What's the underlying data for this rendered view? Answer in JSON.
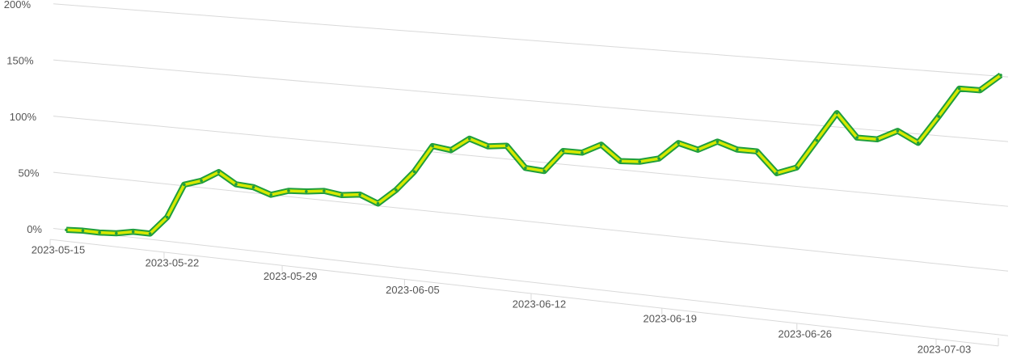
{
  "chart_data": {
    "type": "line",
    "x": [
      "2023-05-15",
      "2023-05-16",
      "2023-05-17",
      "2023-05-18",
      "2023-05-19",
      "2023-05-20",
      "2023-05-21",
      "2023-05-22",
      "2023-05-23",
      "2023-05-24",
      "2023-05-25",
      "2023-05-26",
      "2023-05-27",
      "2023-05-28",
      "2023-05-29",
      "2023-05-30",
      "2023-05-31",
      "2023-06-01",
      "2023-06-02",
      "2023-06-03",
      "2023-06-04",
      "2023-06-05",
      "2023-06-06",
      "2023-06-07",
      "2023-06-08",
      "2023-06-09",
      "2023-06-10",
      "2023-06-11",
      "2023-06-12",
      "2023-06-13",
      "2023-06-14",
      "2023-06-15",
      "2023-06-16",
      "2023-06-17",
      "2023-06-18",
      "2023-06-19",
      "2023-06-20",
      "2023-06-21",
      "2023-06-22",
      "2023-06-23",
      "2023-06-24",
      "2023-06-25",
      "2023-06-26",
      "2023-06-27",
      "2023-06-28",
      "2023-06-29",
      "2023-06-30",
      "2023-07-01",
      "2023-07-02",
      "2023-07-03",
      "2023-07-04"
    ],
    "series": [
      {
        "color": "#d6e800",
        "edge_color": "#1f9e3c",
        "values": [
          0,
          1,
          1,
          2,
          5,
          5,
          21,
          51,
          56,
          65,
          56,
          55,
          50,
          55,
          56,
          58,
          56,
          58,
          52,
          65,
          82,
          105,
          103,
          114,
          109,
          111,
          94,
          93,
          111,
          111,
          119,
          107,
          108,
          112,
          126,
          122,
          130,
          125,
          125,
          109,
          115,
          138,
          161,
          143,
          143,
          151,
          143,
          165,
          188,
          188,
          201
        ]
      }
    ],
    "xticks": [
      "2023-05-15",
      "2023-05-22",
      "2023-05-29",
      "2023-06-05",
      "2023-06-12",
      "2023-06-19",
      "2023-06-26",
      "2023-07-03"
    ],
    "ylim": [
      0,
      200
    ],
    "yticks": [
      {
        "value": 0,
        "label": "0%"
      },
      {
        "value": 50,
        "label": "50%"
      },
      {
        "value": 100,
        "label": "100%"
      },
      {
        "value": 150,
        "label": "150%"
      },
      {
        "value": 200,
        "label": "200%"
      }
    ],
    "grid": true
  }
}
